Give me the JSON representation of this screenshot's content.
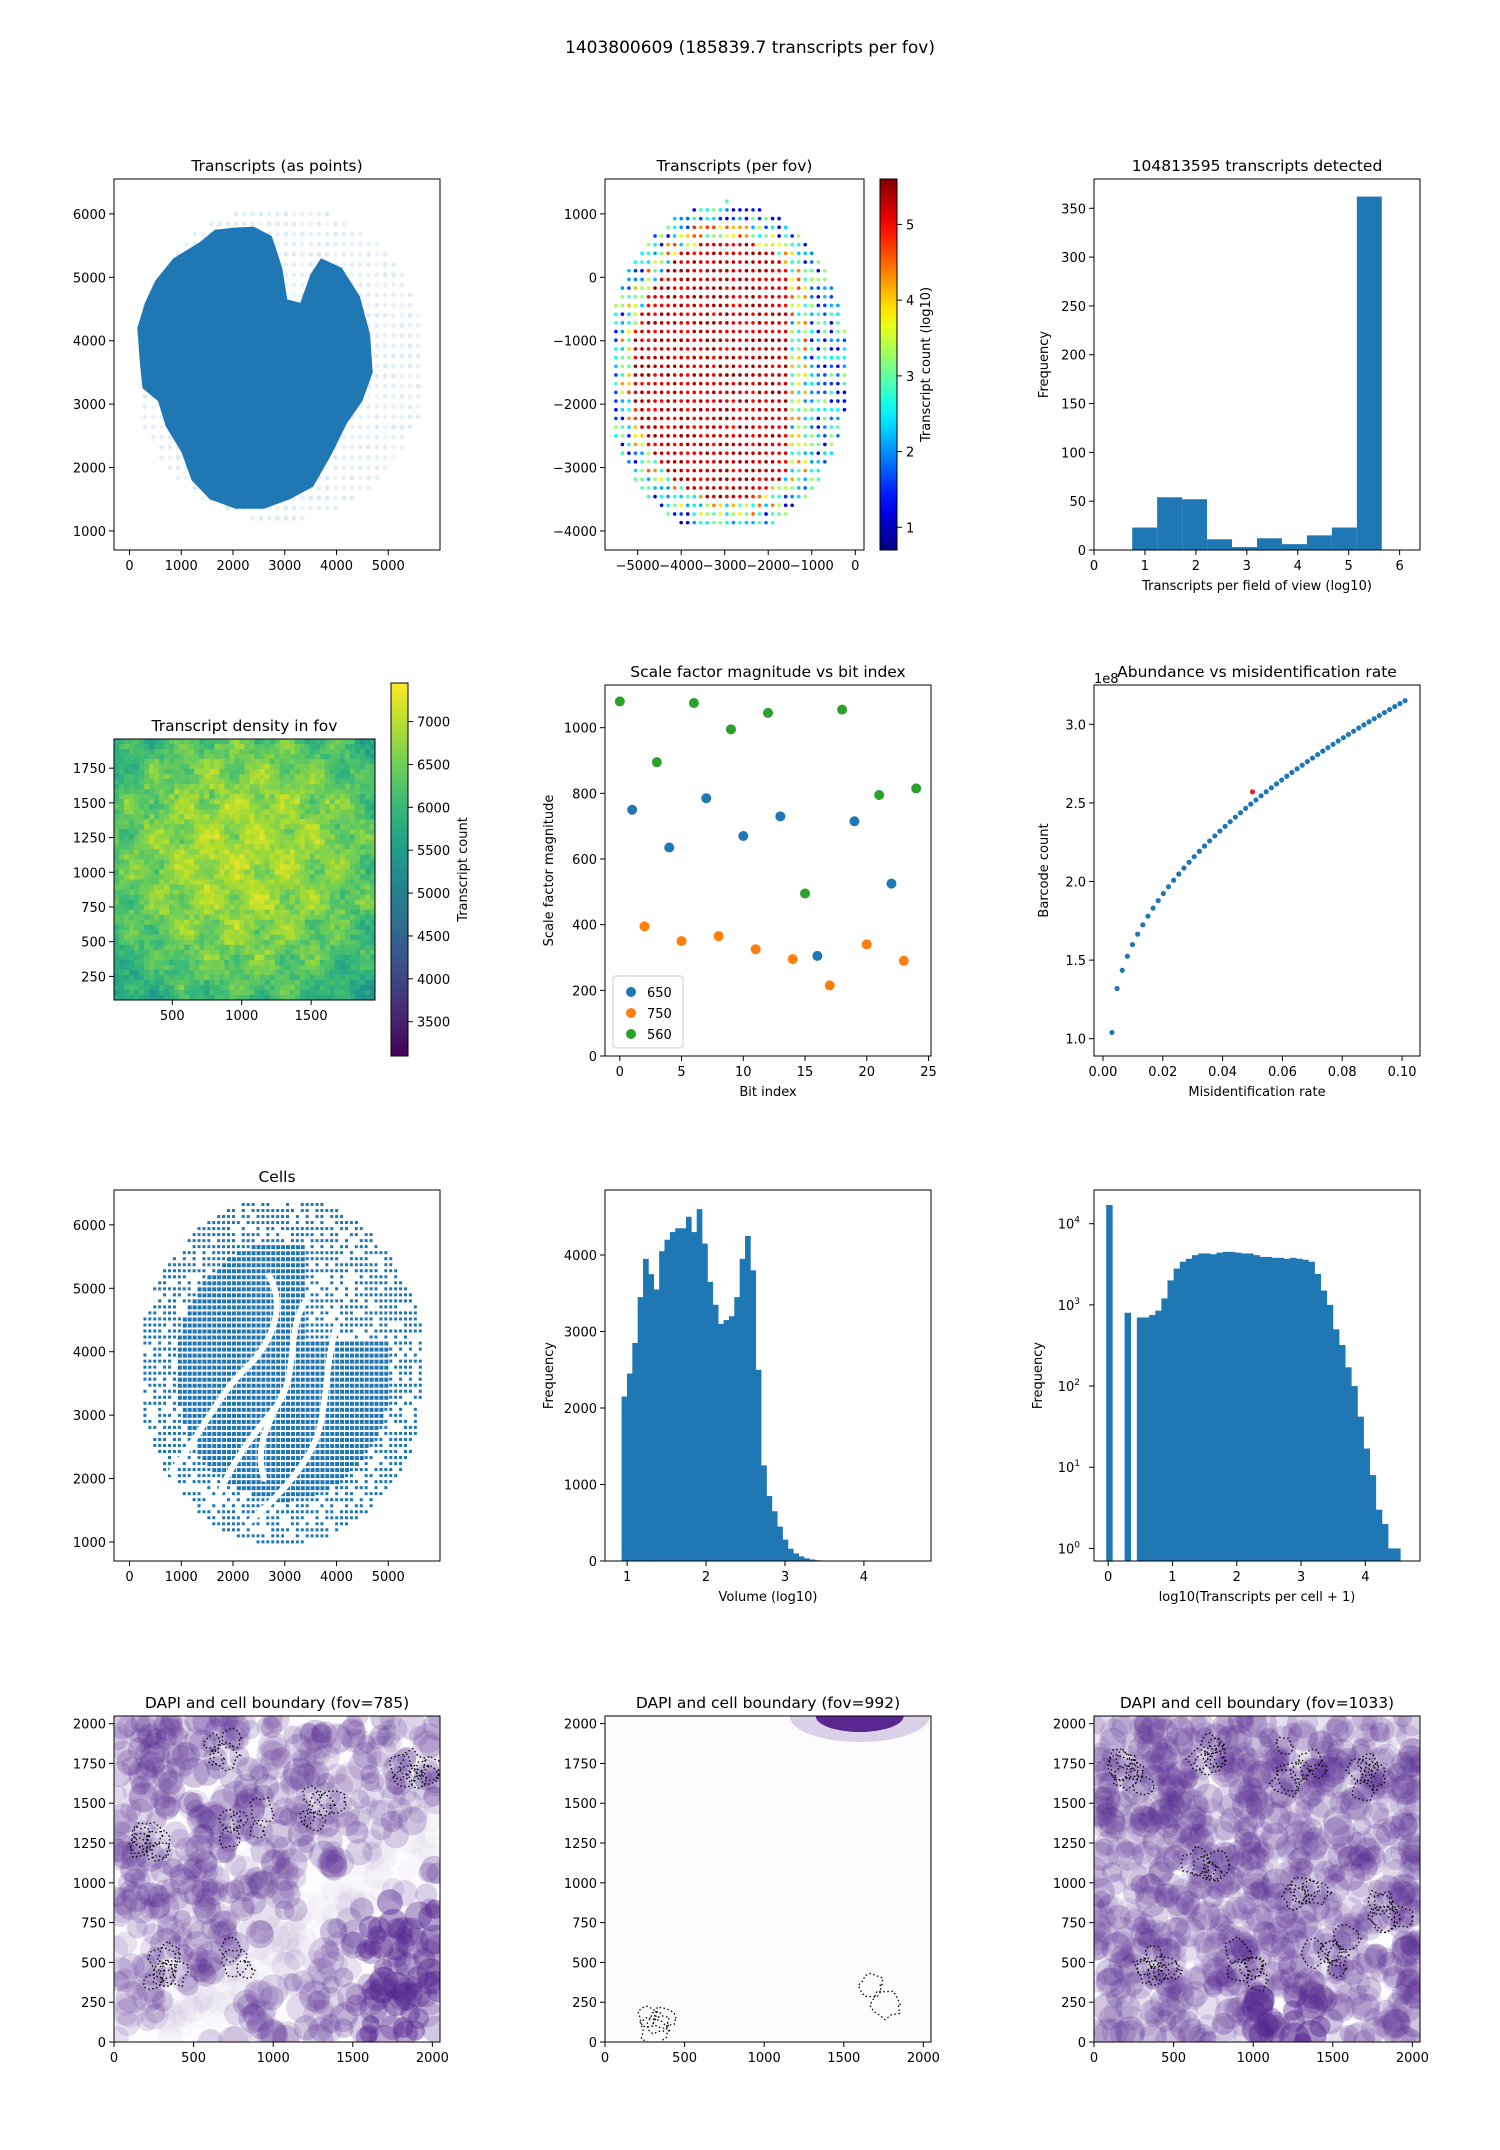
{
  "figure": {
    "title": "1403800609 (185839.7 transcripts per fov)"
  },
  "chart_data": [
    {
      "type": "scatter",
      "title": "Transcripts (as points)",
      "xlabel": "",
      "ylabel": "",
      "xlim": [
        -300,
        6000
      ],
      "ylim": [
        700,
        6550
      ],
      "xticks": [
        0,
        1000,
        2000,
        3000,
        4000,
        5000
      ],
      "yticks": [
        1000,
        2000,
        3000,
        4000,
        5000,
        6000
      ],
      "point_color": "#1f77b4"
    },
    {
      "type": "scatter",
      "title": "Transcripts (per fov)",
      "xlabel": "",
      "ylabel": "",
      "xlim": [
        -5750,
        200
      ],
      "ylim": [
        -4300,
        1550
      ],
      "xticks": [
        -5000,
        -4000,
        -3000,
        -2000,
        -1000,
        0
      ],
      "xtick_labels": [
        "−5000",
        "−4000",
        "−3000",
        "−2000",
        "−1000",
        "0"
      ],
      "yticks": [
        -4000,
        -3000,
        -2000,
        -1000,
        0,
        1000
      ],
      "ytick_labels": [
        "−4000",
        "−3000",
        "−2000",
        "−1000",
        "0",
        "1000"
      ],
      "colorbar": {
        "label": "Transcript count (log10)",
        "range": [
          0.7,
          5.6
        ],
        "ticks": [
          1,
          2,
          3,
          4,
          5
        ],
        "colormap": "jet"
      }
    },
    {
      "type": "bar",
      "title": "104813595 transcripts detected",
      "xlabel": "Transcripts per field of view (log10)",
      "ylabel": "Frequency",
      "xlim": [
        0,
        6.4
      ],
      "ylim": [
        0,
        380
      ],
      "xticks": [
        0,
        1,
        2,
        3,
        4,
        5,
        6
      ],
      "yticks": [
        0,
        50,
        100,
        150,
        200,
        250,
        300,
        350
      ],
      "bin_edges": [
        0.75,
        1.24,
        1.73,
        2.22,
        2.71,
        3.2,
        3.69,
        4.18,
        4.67,
        5.16,
        5.65
      ],
      "values": [
        23,
        54,
        52,
        11,
        3,
        12,
        6,
        15,
        23,
        362
      ],
      "color": "#1f77b4"
    },
    {
      "type": "heatmap",
      "title": "Transcript density in fov",
      "xlabel": "",
      "ylabel": "",
      "xlim": [
        80,
        1960
      ],
      "ylim": [
        80,
        1960
      ],
      "xticks": [
        500,
        1000,
        1500
      ],
      "yticks": [
        250,
        500,
        750,
        1000,
        1250,
        1500,
        1750
      ],
      "colorbar": {
        "label": "Transcript count",
        "range": [
          3100,
          7450
        ],
        "ticks": [
          3500,
          4000,
          4500,
          5000,
          5500,
          6000,
          6500,
          7000
        ],
        "colormap": "viridis"
      }
    },
    {
      "type": "scatter",
      "title": "Scale factor magnitude vs bit index",
      "xlabel": "Bit index",
      "ylabel": "Scale factor magnitude",
      "xlim": [
        -1.2,
        25.2
      ],
      "ylim": [
        0,
        1130
      ],
      "xticks": [
        0,
        5,
        10,
        15,
        20,
        25
      ],
      "yticks": [
        0,
        200,
        400,
        600,
        800,
        1000
      ],
      "legend": "lower left",
      "series": [
        {
          "name": "650",
          "color": "#1f77b4",
          "x": [
            1,
            4,
            7,
            10,
            13,
            16,
            19,
            22
          ],
          "y": [
            750,
            635,
            785,
            670,
            730,
            305,
            715,
            525
          ]
        },
        {
          "name": "750",
          "color": "#ff7f0e",
          "x": [
            2,
            5,
            8,
            11,
            14,
            17,
            20,
            23
          ],
          "y": [
            395,
            350,
            365,
            325,
            295,
            215,
            340,
            290
          ]
        },
        {
          "name": "560",
          "color": "#2ca02c",
          "x": [
            0,
            3,
            6,
            9,
            12,
            15,
            18,
            21,
            24
          ],
          "y": [
            1080,
            895,
            1075,
            995,
            1045,
            495,
            1055,
            795,
            815
          ]
        }
      ]
    },
    {
      "type": "scatter",
      "title": "Abundance vs misidentification rate",
      "xlabel": "Misidentification rate",
      "ylabel": "Barcode count",
      "axis_offset_label": "1e8",
      "xlim": [
        -0.003,
        0.106
      ],
      "ylim": [
        0.89,
        3.25
      ],
      "xticks": [
        0.0,
        0.02,
        0.04,
        0.06,
        0.08,
        0.1
      ],
      "xtick_labels": [
        "0.00",
        "0.02",
        "0.04",
        "0.06",
        "0.08",
        "0.10"
      ],
      "yticks": [
        1.0,
        1.5,
        2.0,
        2.5,
        3.0
      ],
      "ytick_labels": [
        "1.0",
        "1.5",
        "2.0",
        "2.5",
        "3.0"
      ],
      "point_color": "#1f77b4",
      "highlight_point": {
        "x": 0.05,
        "y": 2.57,
        "color": "#d62728"
      }
    },
    {
      "type": "scatter",
      "title": "Cells",
      "xlabel": "",
      "ylabel": "",
      "xlim": [
        -300,
        6000
      ],
      "ylim": [
        700,
        6550
      ],
      "xticks": [
        0,
        1000,
        2000,
        3000,
        4000,
        5000
      ],
      "yticks": [
        1000,
        2000,
        3000,
        4000,
        5000,
        6000
      ],
      "point_color": "#1f77b4"
    },
    {
      "type": "bar",
      "title": "",
      "xlabel": "Volume (log10)",
      "ylabel": "Frequency",
      "xlim": [
        0.72,
        4.85
      ],
      "ylim": [
        0,
        4850
      ],
      "xticks": [
        1,
        2,
        3,
        4
      ],
      "yticks": [
        0,
        1000,
        2000,
        3000,
        4000
      ],
      "bin_start": 0.93,
      "bin_width": 0.068,
      "values": [
        2150,
        2450,
        2850,
        3450,
        3950,
        3750,
        3550,
        4050,
        4200,
        4300,
        4350,
        4350,
        4500,
        4300,
        4600,
        4150,
        3650,
        3350,
        3100,
        3150,
        3200,
        3450,
        3950,
        4250,
        3800,
        2500,
        1250,
        850,
        650,
        450,
        280,
        160,
        100,
        60,
        35,
        20,
        10,
        5
      ],
      "color": "#1f77b4"
    },
    {
      "type": "bar",
      "title": "",
      "xlabel": "log10(Transcripts per cell + 1)",
      "ylabel": "Frequency",
      "log_y": true,
      "xlim": [
        -0.22,
        4.85
      ],
      "ylim": [
        0.7,
        26000
      ],
      "xticks": [
        0,
        1,
        2,
        3,
        4
      ],
      "yticks": [
        1,
        10,
        100,
        1000,
        10000
      ],
      "bin_start": -0.03,
      "bin_width": 0.0953,
      "values": [
        17000,
        0,
        0,
        800,
        0,
        700,
        700,
        750,
        850,
        1200,
        2000,
        2800,
        3400,
        3700,
        4100,
        4300,
        4300,
        4200,
        4400,
        4500,
        4500,
        4400,
        4300,
        4300,
        4100,
        3900,
        3900,
        3800,
        3800,
        3700,
        3800,
        3700,
        3600,
        3400,
        2400,
        1500,
        1000,
        500,
        320,
        170,
        100,
        42,
        17,
        8,
        3,
        2,
        1,
        1
      ],
      "color": "#1f77b4"
    },
    {
      "type": "heatmap",
      "title": "DAPI and cell boundary (fov=785)",
      "xlabel": "",
      "ylabel": "",
      "xlim": [
        0,
        2048
      ],
      "ylim": [
        0,
        2048
      ],
      "xticks": [
        0,
        500,
        1000,
        1500,
        2000
      ],
      "yticks": [
        0,
        250,
        500,
        750,
        1000,
        1250,
        1500,
        1750,
        2000
      ],
      "colormap": "Purples"
    },
    {
      "type": "heatmap",
      "title": "DAPI and cell boundary (fov=992)",
      "xlabel": "",
      "ylabel": "",
      "xlim": [
        0,
        2048
      ],
      "ylim": [
        0,
        2048
      ],
      "xticks": [
        0,
        500,
        1000,
        1500,
        2000
      ],
      "yticks": [
        0,
        250,
        500,
        750,
        1000,
        1250,
        1500,
        1750,
        2000
      ],
      "colormap": "Purples"
    },
    {
      "type": "heatmap",
      "title": "DAPI and cell boundary (fov=1033)",
      "xlabel": "",
      "ylabel": "",
      "xlim": [
        0,
        2048
      ],
      "ylim": [
        0,
        2048
      ],
      "xticks": [
        0,
        500,
        1000,
        1500,
        2000
      ],
      "yticks": [
        0,
        250,
        500,
        750,
        1000,
        1250,
        1500,
        1750,
        2000
      ],
      "colormap": "Purples"
    }
  ]
}
